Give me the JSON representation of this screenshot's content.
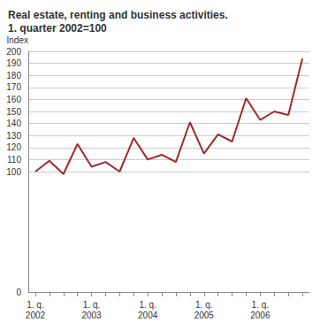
{
  "chart_data": {
    "type": "line",
    "title": "Real estate, renting and business activities.\n1. quarter 2002=100",
    "y_label": "Index",
    "categories": [
      "1. q.\n2002",
      null,
      null,
      null,
      "1. q.\n2003",
      null,
      null,
      null,
      "1. q.\n2004",
      null,
      null,
      null,
      "1. q.\n2005",
      null,
      null,
      null,
      "1. q.\n2006",
      null,
      null,
      null
    ],
    "values": [
      100,
      109,
      98,
      123,
      104,
      108,
      100,
      128,
      110,
      114,
      108,
      141,
      115,
      131,
      125,
      161,
      143,
      150,
      147,
      194
    ],
    "color": "#9e2a2f",
    "ylim": [
      0,
      200
    ],
    "yticks": [
      0,
      100,
      110,
      120,
      130,
      140,
      150,
      160,
      170,
      180,
      190,
      200
    ],
    "grid": true
  }
}
